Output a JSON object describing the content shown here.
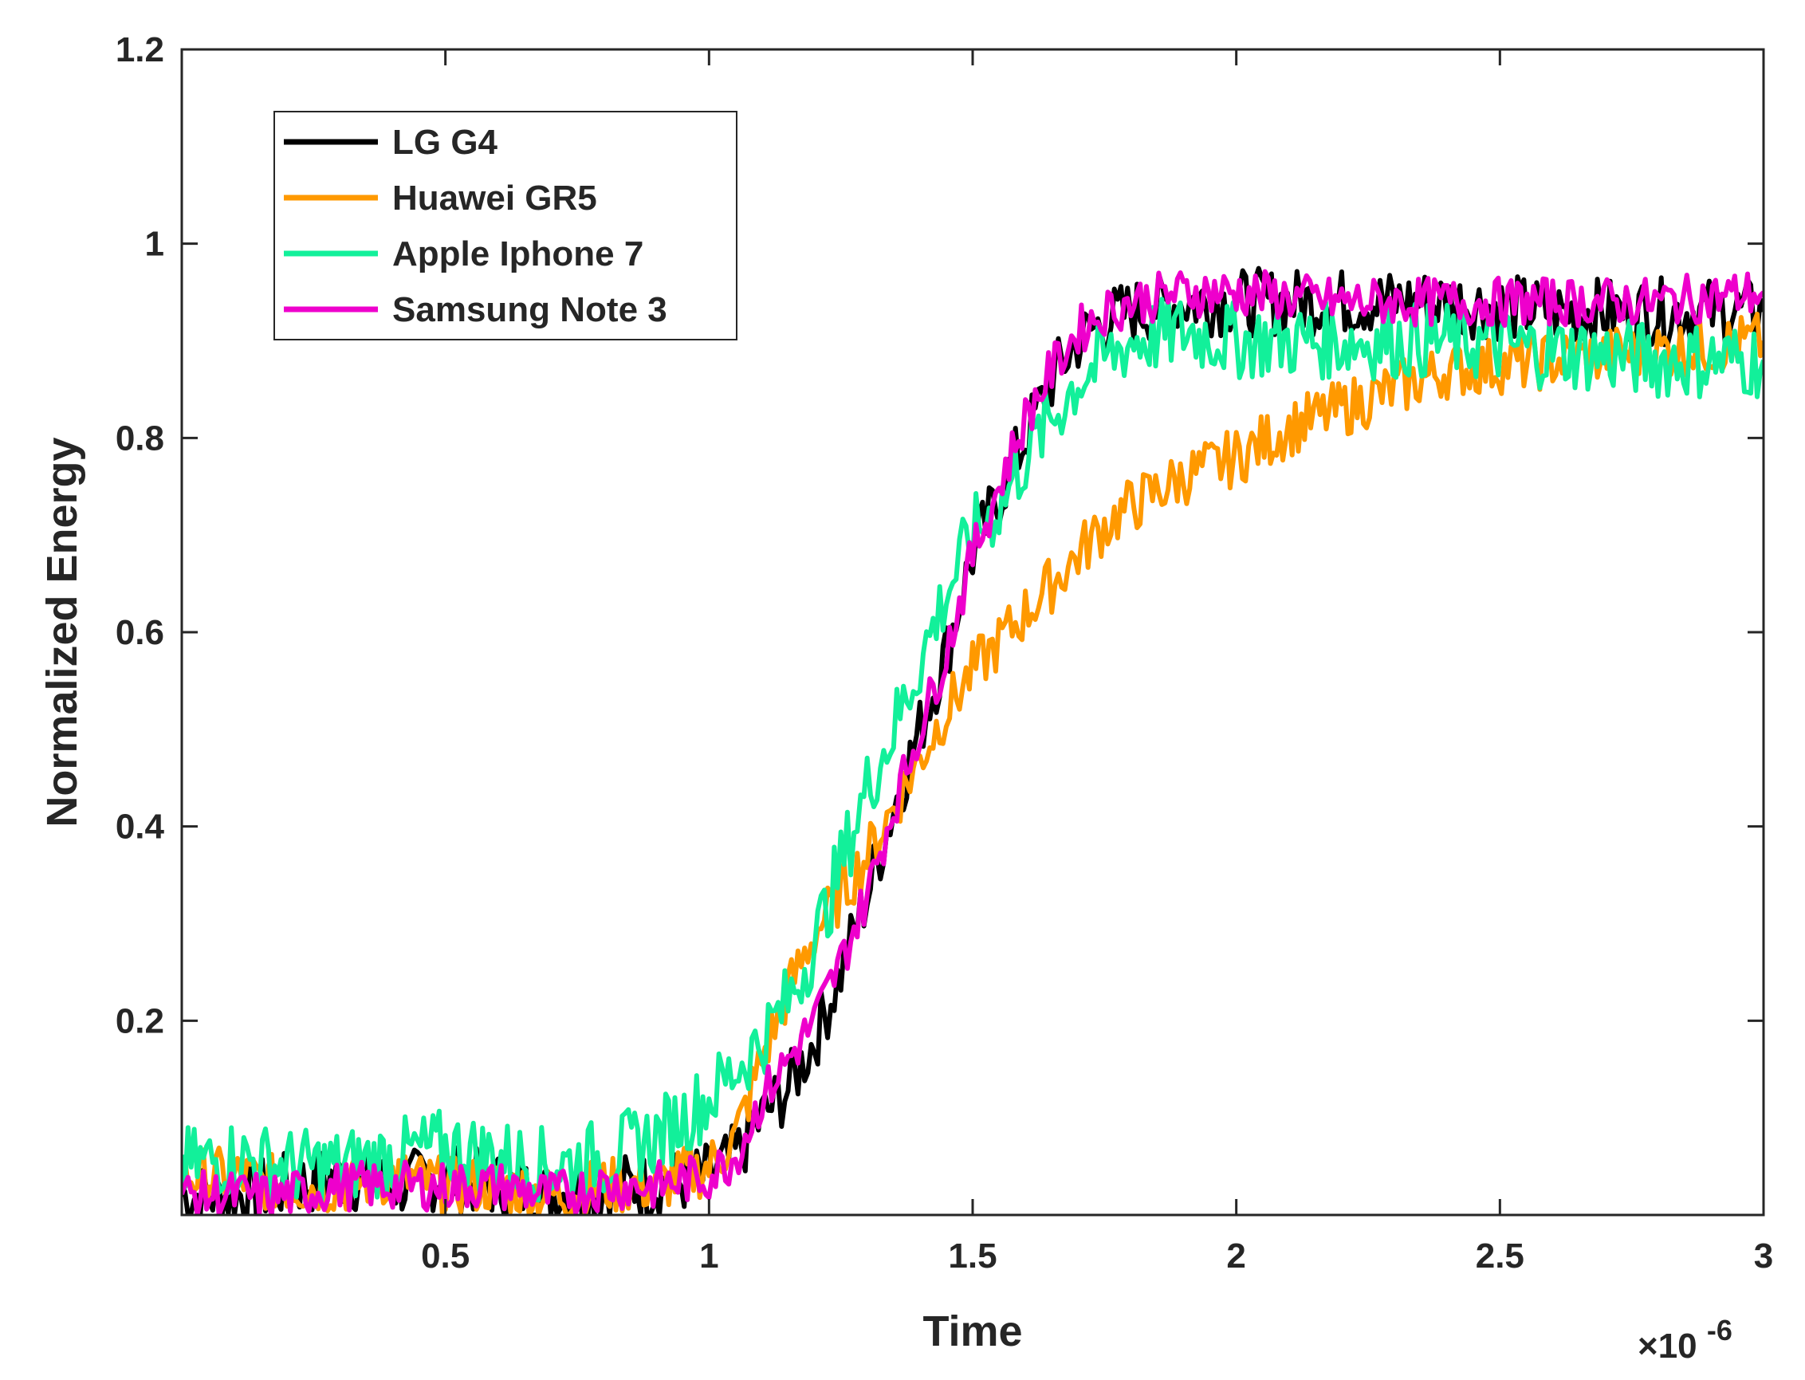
{
  "chart_data": {
    "type": "line",
    "xlabel": "Time",
    "ylabel": "Normalized Energy",
    "x_exponent_label": "×10",
    "x_exponent_power": "-6",
    "xlim": [
      0,
      3
    ],
    "ylim": [
      0,
      1.2
    ],
    "x_ticks": [
      0.5,
      1,
      1.5,
      2,
      2.5,
      3
    ],
    "x_tick_labels": [
      "0.5",
      "1",
      "1.5",
      "2",
      "2.5",
      "3"
    ],
    "y_ticks": [
      0.2,
      0.4,
      0.6,
      0.8,
      1,
      1.2
    ],
    "y_tick_labels": [
      "0.2",
      "0.4",
      "0.6",
      "0.8",
      "1",
      "1.2"
    ],
    "grid": false,
    "legend_position": "top-left",
    "legend": [
      "LG G4",
      "Huawei GR5",
      "Apple Iphone 7",
      "Samsung Note 3"
    ],
    "series": [
      {
        "name": "LG G4",
        "color": "#000000",
        "x": [
          0,
          0.1,
          0.2,
          0.3,
          0.4,
          0.5,
          0.6,
          0.7,
          0.8,
          0.9,
          1.0,
          1.05,
          1.1,
          1.15,
          1.2,
          1.25,
          1.3,
          1.35,
          1.4,
          1.45,
          1.5,
          1.55,
          1.6,
          1.65,
          1.7,
          1.75,
          1.8,
          1.9,
          2.0,
          2.2,
          2.4,
          2.6,
          2.8,
          3.0
        ],
        "values": [
          0.02,
          0.02,
          0.03,
          0.04,
          0.03,
          0.04,
          0.03,
          0.02,
          0.03,
          0.03,
          0.04,
          0.06,
          0.1,
          0.13,
          0.18,
          0.25,
          0.33,
          0.42,
          0.5,
          0.58,
          0.68,
          0.74,
          0.8,
          0.86,
          0.9,
          0.92,
          0.93,
          0.94,
          0.94,
          0.94,
          0.94,
          0.93,
          0.93,
          0.93
        ]
      },
      {
        "name": "Huawei GR5",
        "color": "#ff9900",
        "x": [
          0,
          0.1,
          0.2,
          0.3,
          0.4,
          0.5,
          0.6,
          0.7,
          0.8,
          0.9,
          1.0,
          1.05,
          1.1,
          1.15,
          1.2,
          1.25,
          1.3,
          1.35,
          1.4,
          1.45,
          1.5,
          1.55,
          1.6,
          1.65,
          1.7,
          1.75,
          1.8,
          1.9,
          2.0,
          2.1,
          2.2,
          2.3,
          2.4,
          2.6,
          2.8,
          3.0
        ],
        "values": [
          0.04,
          0.04,
          0.03,
          0.03,
          0.04,
          0.03,
          0.03,
          0.02,
          0.03,
          0.03,
          0.05,
          0.08,
          0.16,
          0.23,
          0.29,
          0.33,
          0.37,
          0.42,
          0.47,
          0.52,
          0.56,
          0.59,
          0.62,
          0.65,
          0.68,
          0.71,
          0.73,
          0.76,
          0.78,
          0.81,
          0.83,
          0.85,
          0.87,
          0.88,
          0.89,
          0.9
        ]
      },
      {
        "name": "Apple Iphone 7",
        "color": "#12f09a",
        "x": [
          0,
          0.1,
          0.2,
          0.3,
          0.4,
          0.5,
          0.6,
          0.7,
          0.8,
          0.9,
          1.0,
          1.05,
          1.1,
          1.15,
          1.2,
          1.25,
          1.3,
          1.35,
          1.4,
          1.45,
          1.5,
          1.55,
          1.6,
          1.65,
          1.7,
          1.75,
          1.8,
          1.9,
          2.0,
          2.2,
          2.4,
          2.6,
          2.8,
          3.0
        ],
        "values": [
          0.05,
          0.06,
          0.05,
          0.05,
          0.06,
          0.07,
          0.06,
          0.05,
          0.06,
          0.08,
          0.12,
          0.15,
          0.18,
          0.22,
          0.28,
          0.36,
          0.44,
          0.5,
          0.57,
          0.64,
          0.7,
          0.73,
          0.78,
          0.82,
          0.86,
          0.88,
          0.9,
          0.91,
          0.9,
          0.9,
          0.9,
          0.89,
          0.88,
          0.88
        ]
      },
      {
        "name": "Samsung Note 3",
        "color": "#ee00cc",
        "x": [
          0,
          0.1,
          0.2,
          0.3,
          0.4,
          0.5,
          0.6,
          0.7,
          0.8,
          0.9,
          1.0,
          1.05,
          1.1,
          1.15,
          1.2,
          1.25,
          1.3,
          1.35,
          1.4,
          1.45,
          1.5,
          1.55,
          1.6,
          1.65,
          1.7,
          1.75,
          1.8,
          1.9,
          2.0,
          2.2,
          2.4,
          2.6,
          2.8,
          3.0
        ],
        "values": [
          0.02,
          0.02,
          0.02,
          0.03,
          0.03,
          0.03,
          0.03,
          0.02,
          0.03,
          0.03,
          0.04,
          0.06,
          0.12,
          0.16,
          0.2,
          0.26,
          0.33,
          0.42,
          0.5,
          0.58,
          0.68,
          0.75,
          0.82,
          0.87,
          0.91,
          0.93,
          0.94,
          0.95,
          0.95,
          0.94,
          0.94,
          0.94,
          0.94,
          0.95
        ]
      }
    ]
  }
}
